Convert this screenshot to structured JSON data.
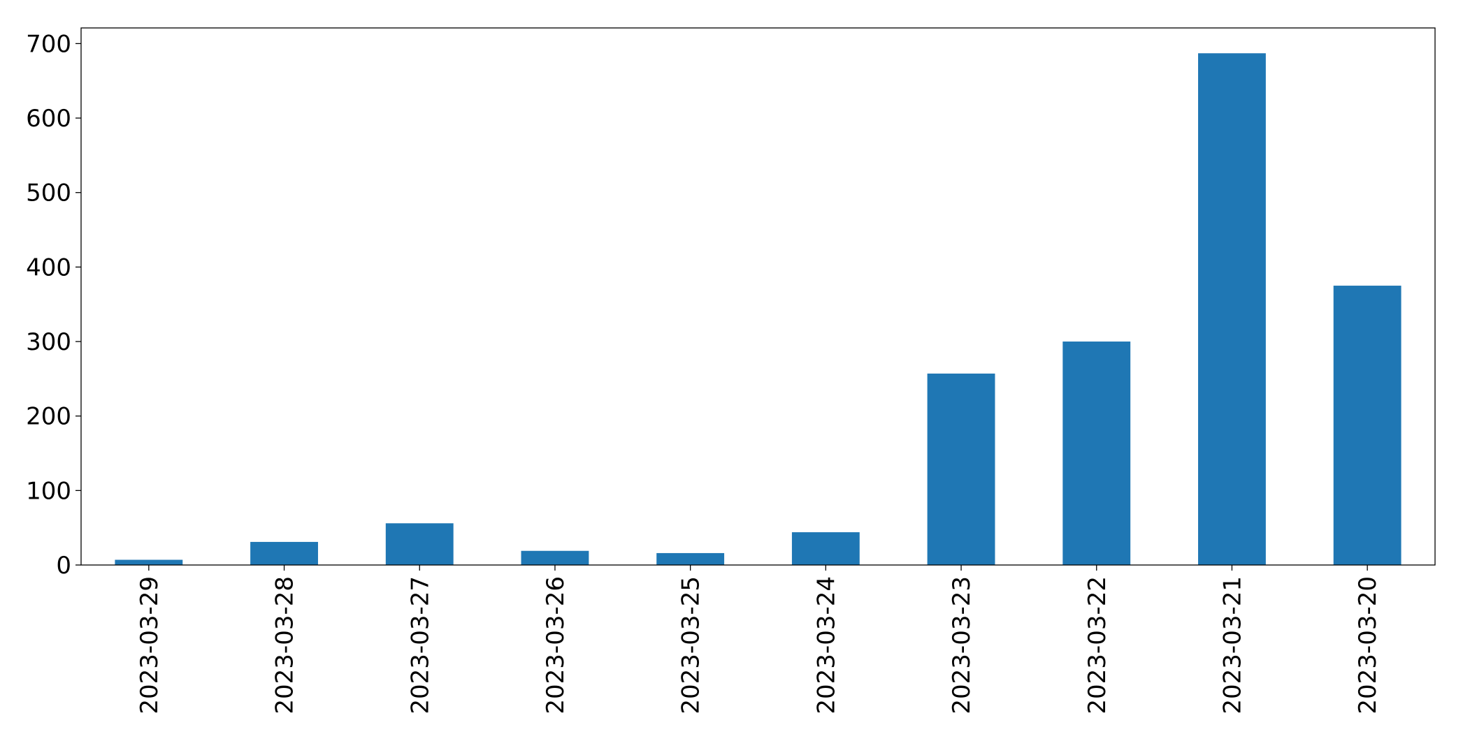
{
  "chart_data": {
    "type": "bar",
    "categories": [
      "2023-03-29",
      "2023-03-28",
      "2023-03-27",
      "2023-03-26",
      "2023-03-25",
      "2023-03-24",
      "2023-03-23",
      "2023-03-22",
      "2023-03-21",
      "2023-03-20"
    ],
    "values": [
      7,
      31,
      56,
      19,
      16,
      44,
      257,
      300,
      687,
      375
    ],
    "color": "#1f77b4",
    "ylim": [
      0,
      721
    ],
    "yticks": [
      0,
      100,
      200,
      300,
      400,
      500,
      600,
      700
    ],
    "grid": false
  }
}
